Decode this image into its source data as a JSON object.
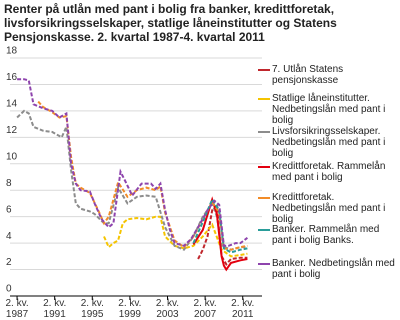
{
  "chart_data": {
    "type": "line",
    "title": "Renter på utlån med pant i bolig fra banker, kredittforetak, livsforsikringsselskaper, statlige låneinstitutter og Statens Pensjonskasse. 2. kvartal 1987-4. kvartal 2011",
    "xlim": [
      1986.5,
      2013.3
    ],
    "ylim": [
      0,
      18
    ],
    "yticks": [
      0,
      2,
      4,
      6,
      8,
      10,
      12,
      14,
      16,
      18
    ],
    "xticks": [
      {
        "value": 1987.25,
        "label": "2. kv. 1987"
      },
      {
        "value": 1991.25,
        "label": "2. kv. 1991"
      },
      {
        "value": 1995.25,
        "label": "2. kv. 1995"
      },
      {
        "value": 1999.25,
        "label": "2. kv. 1999"
      },
      {
        "value": 2003.25,
        "label": "2. kv. 2003"
      },
      {
        "value": 2007.25,
        "label": "2. kv. 2007"
      },
      {
        "value": 2011.25,
        "label": "2. kv. 2011"
      }
    ],
    "grid": true,
    "series": [
      {
        "name": "7. Utlån Statens pensjonskasse",
        "color": "#c0272d",
        "dash": true,
        "x": [
          2006.5,
          2007,
          2007.5,
          2008,
          2008.5,
          2009,
          2009.5,
          2010,
          2011,
          2011.75
        ],
        "values": [
          2.8,
          3.5,
          4.5,
          6.5,
          6.8,
          3.0,
          2.4,
          2.8,
          2.9,
          2.9
        ]
      },
      {
        "name": "Statlige låneinstitutter. Nedbetingslån med pant i bolig",
        "color": "#f5c400",
        "dash": true,
        "x": [
          1996.5,
          1997,
          1997.5,
          1998,
          1998.5,
          1999,
          2000,
          2001,
          2002,
          2002.5,
          2003,
          2004,
          2005,
          2006,
          2007,
          2008,
          2009,
          2010,
          2011,
          2011.75
        ],
        "values": [
          4.5,
          3.7,
          4.0,
          4.2,
          5.5,
          5.8,
          5.9,
          5.8,
          6.0,
          6.0,
          4.5,
          3.8,
          3.6,
          3.8,
          4.5,
          5.4,
          3.5,
          3.0,
          3.1,
          3.2
        ]
      },
      {
        "name": "Livsforsikringsselskaper. Nedbetingslån med pant i bolig",
        "color": "#8c8c8c",
        "dash": true,
        "x": [
          1987.25,
          1988,
          1988.5,
          1989,
          1990,
          1991,
          1992,
          1992.5,
          1993,
          1993.5,
          1994,
          1995,
          1995.5,
          1996.5,
          1997,
          1998,
          1999,
          2000,
          2001,
          2002,
          2003,
          2004,
          2005,
          2006,
          2007,
          2008,
          2008.5,
          2009,
          2010,
          2011,
          2011.75
        ],
        "values": [
          13.5,
          14.0,
          13.8,
          12.8,
          12.5,
          12.4,
          12.0,
          12.8,
          9.5,
          7.0,
          6.6,
          6.4,
          6.2,
          5.5,
          5.5,
          8.2,
          7.0,
          7.5,
          7.6,
          7.5,
          5.2,
          3.8,
          3.5,
          4.5,
          6.0,
          7.0,
          6.0,
          3.8,
          3.5,
          3.7,
          3.7
        ]
      },
      {
        "name": "Kredittforetak. Rammelån med pant i bolig",
        "color": "#e3000f",
        "dash": false,
        "x": [
          2006,
          2007,
          2008,
          2008.5,
          2009,
          2009.25,
          2009.5,
          2010,
          2011,
          2011.75
        ],
        "values": [
          3.9,
          5.0,
          7.3,
          6.2,
          3.0,
          2.3,
          2.0,
          2.5,
          2.7,
          2.8
        ]
      },
      {
        "name": "Kredittforetak. Nedbetingslån med pant i bolig",
        "color": "#f28c28",
        "dash": true,
        "x": [
          1989.5,
          1990,
          1991,
          1991.75,
          1992.5,
          1993,
          1993.5,
          1994,
          1995,
          1996,
          1996.5,
          1997,
          1998,
          1999,
          2000,
          2001,
          2002,
          2002.5,
          2003,
          2004,
          2005,
          2006,
          2007,
          2008,
          2008.75,
          2009.25,
          2010,
          2011,
          2011.75
        ],
        "values": [
          14.7,
          14.3,
          13.9,
          13.5,
          13.6,
          10.5,
          8.5,
          8.2,
          7.8,
          6.3,
          5.5,
          6.0,
          8.6,
          7.5,
          8.0,
          8.2,
          8.0,
          8.3,
          6.3,
          4.2,
          3.7,
          4.5,
          5.8,
          7.1,
          6.3,
          3.6,
          3.5,
          3.7,
          3.8
        ]
      },
      {
        "name": "Banker. Rammelån med pant i bolig Banks.",
        "color": "#2a9d9a",
        "dash": true,
        "x": [
          2006,
          2007,
          2008,
          2008.75,
          2009.25,
          2010,
          2011,
          2011.75
        ],
        "values": [
          4.0,
          5.6,
          7.3,
          6.5,
          3.6,
          3.3,
          3.5,
          3.6
        ]
      },
      {
        "name": "Banker. Nedbetingslån med pant i bolig",
        "color": "#8e44ad",
        "dash": true,
        "x": [
          1987.25,
          1988,
          1988.5,
          1989,
          1990,
          1991,
          1991.75,
          1992.5,
          1993,
          1993.5,
          1994,
          1995,
          1995.5,
          1996.25,
          1997,
          1997.5,
          1998.25,
          1998.75,
          1999.5,
          2000.5,
          2001.5,
          2002,
          2002.5,
          2003,
          2003.5,
          2004,
          2005,
          2005.75,
          2006.5,
          2007.5,
          2008.25,
          2008.75,
          2009.25,
          2009.75,
          2010.5,
          2011,
          2011.75
        ],
        "values": [
          16.4,
          16.4,
          16.3,
          14.5,
          14.2,
          14.0,
          13.5,
          13.8,
          10.0,
          8.5,
          8.0,
          7.9,
          7.0,
          5.8,
          5.2,
          5.5,
          9.4,
          8.7,
          7.6,
          8.5,
          8.5,
          8.1,
          8.5,
          6.5,
          5.0,
          4.0,
          3.8,
          4.3,
          5.2,
          6.5,
          7.2,
          6.9,
          3.8,
          3.8,
          4.0,
          4.0,
          4.4
        ]
      }
    ]
  }
}
